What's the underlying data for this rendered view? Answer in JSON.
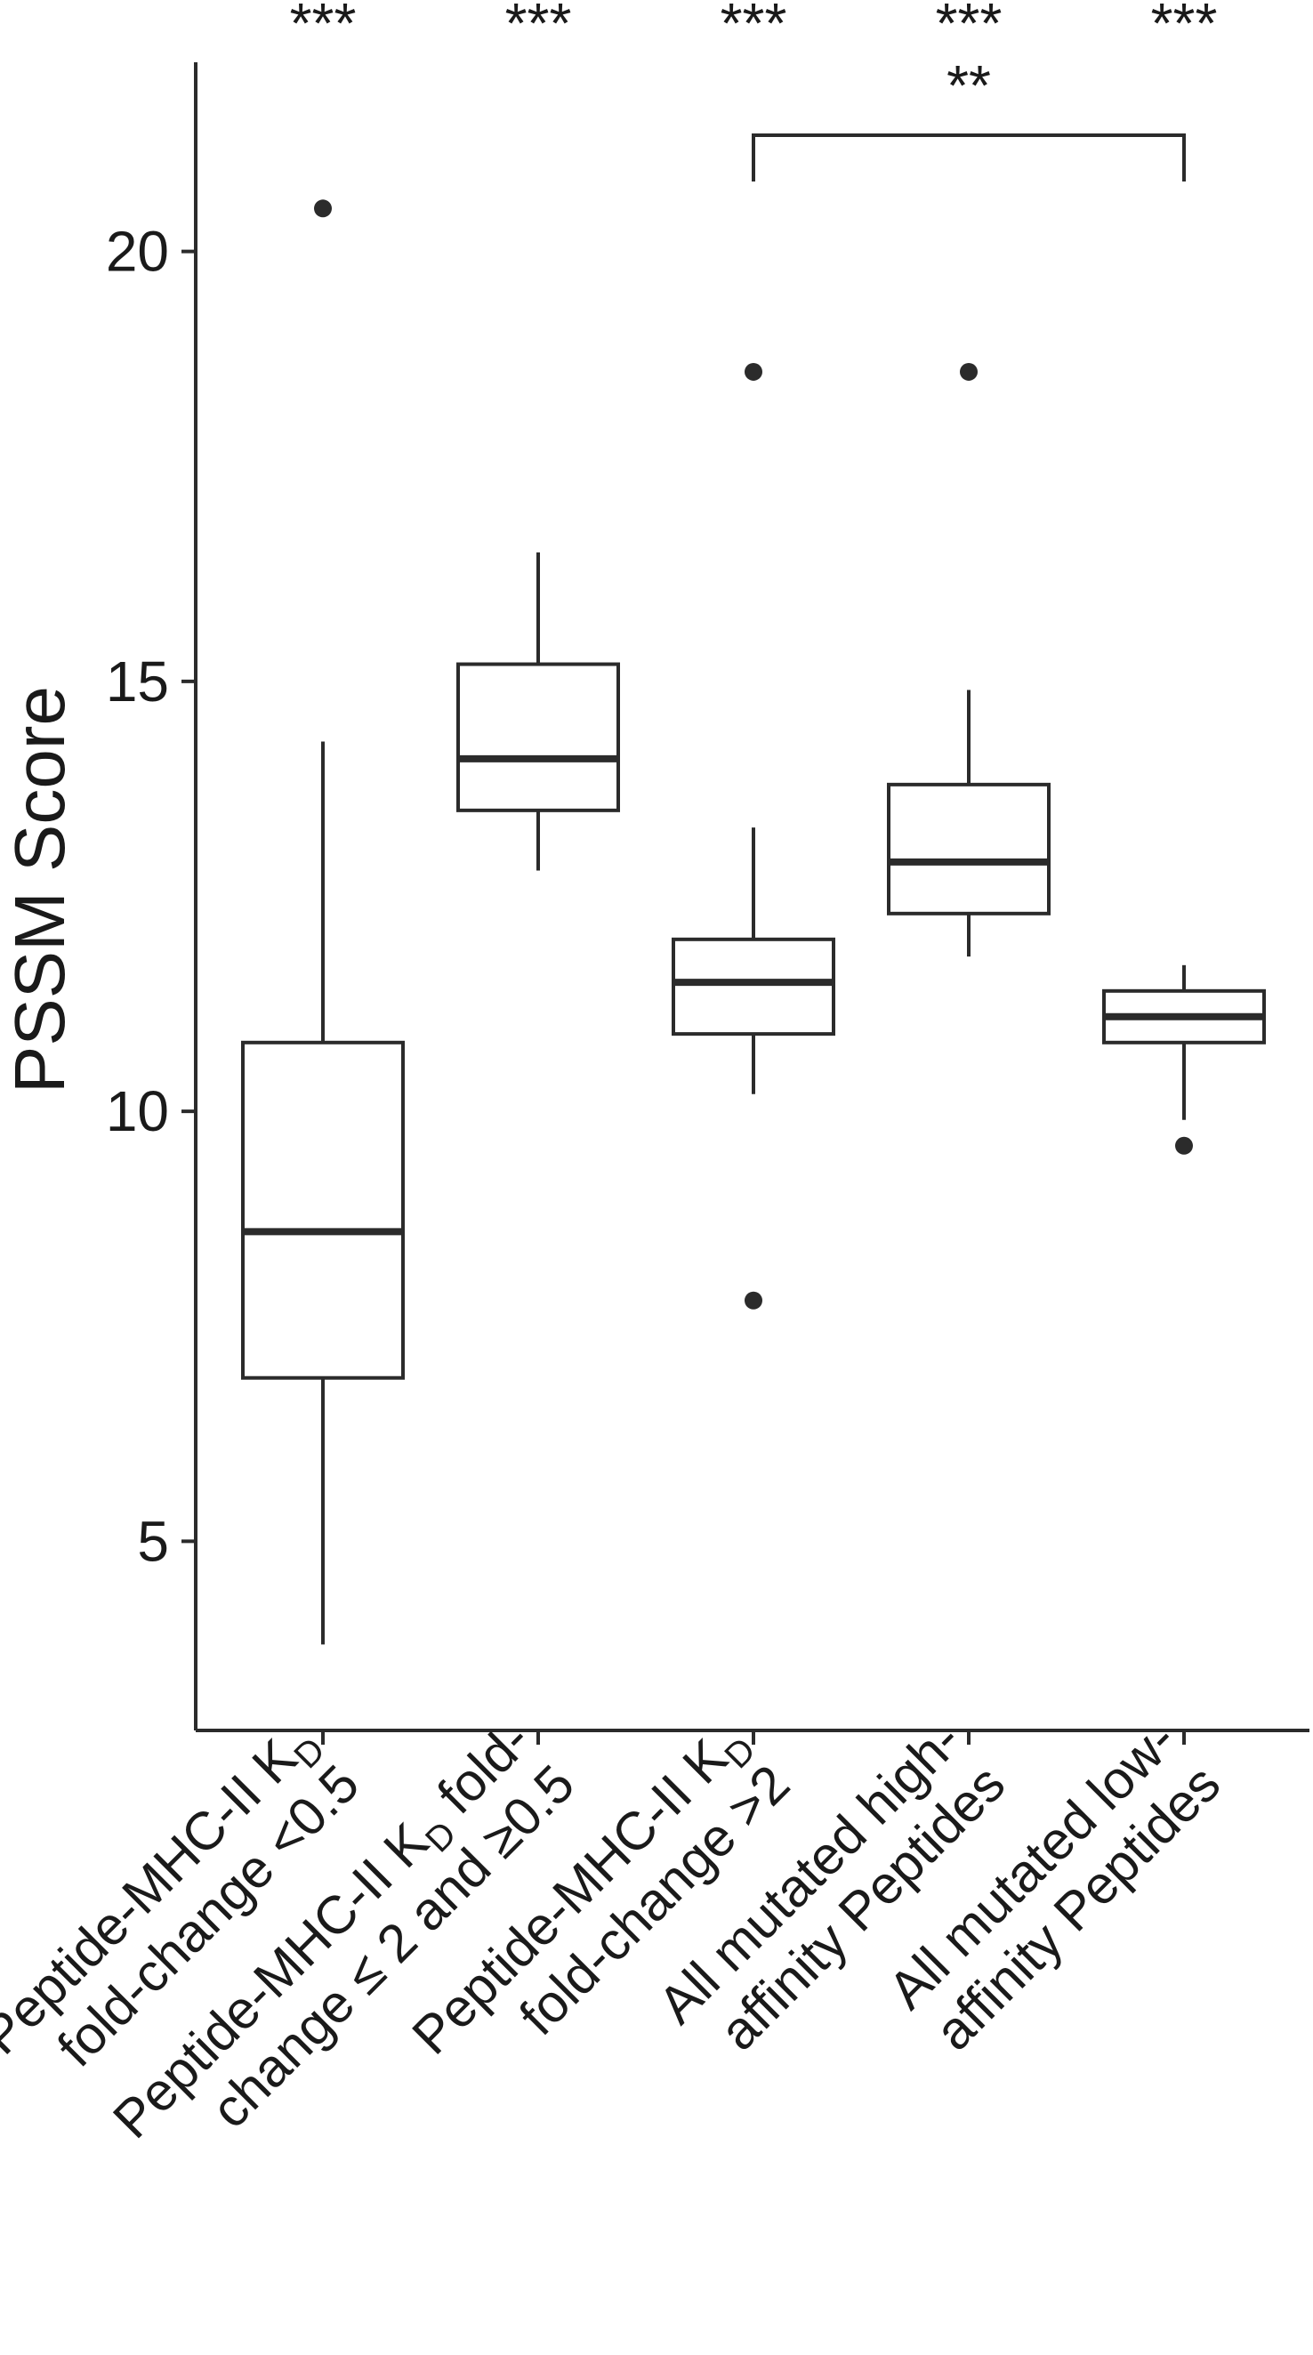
{
  "chart_data": {
    "type": "box",
    "ylabel": "PSSM Score",
    "ylim": [
      2.8,
      22.2
    ],
    "yticks": [
      5,
      10,
      15,
      20
    ],
    "ytick_labels": [
      "5",
      "10",
      "15",
      "20"
    ],
    "grid": false,
    "legend": "none",
    "categories": [
      {
        "lines": [
          {
            "text": "Peptide-MHC-II K",
            "sub": "D"
          },
          {
            "text": "fold-change <0.5"
          }
        ],
        "box": {
          "whisker_low": 3.8,
          "q1": 6.9,
          "median": 8.6,
          "q3": 10.8,
          "whisker_high": 14.3,
          "outliers": [
            20.5
          ]
        },
        "significance": "***"
      },
      {
        "lines": [
          {
            "text": "Peptide-MHC-II K",
            "sub": "D",
            "after": " fold-"
          },
          {
            "text": "change ≤ 2 and ≥0.5"
          }
        ],
        "box": {
          "whisker_low": 12.8,
          "q1": 13.5,
          "median": 14.1,
          "q3": 15.2,
          "whisker_high": 16.5,
          "outliers": []
        },
        "significance": "***"
      },
      {
        "lines": [
          {
            "text": "Peptide-MHC-II K",
            "sub": "D"
          },
          {
            "text": "fold-change >2"
          }
        ],
        "box": {
          "whisker_low": 10.2,
          "q1": 10.9,
          "median": 11.5,
          "q3": 12.0,
          "whisker_high": 13.3,
          "outliers": [
            18.6,
            7.8
          ]
        },
        "significance": "***"
      },
      {
        "lines": [
          {
            "text": "All mutated high-"
          },
          {
            "text": "affinity Peptides"
          }
        ],
        "box": {
          "whisker_low": 11.8,
          "q1": 12.3,
          "median": 12.9,
          "q3": 13.8,
          "whisker_high": 14.9,
          "outliers": [
            18.6
          ]
        },
        "significance": "***"
      },
      {
        "lines": [
          {
            "text": "All mutated low-"
          },
          {
            "text": "affinity Peptides"
          }
        ],
        "box": {
          "whisker_low": 9.9,
          "q1": 10.8,
          "median": 11.1,
          "q3": 11.4,
          "whisker_high": 11.7,
          "outliers": [
            9.6
          ]
        },
        "significance": "***"
      }
    ],
    "comparison": {
      "from": 2,
      "to": 4,
      "label": "**"
    }
  }
}
